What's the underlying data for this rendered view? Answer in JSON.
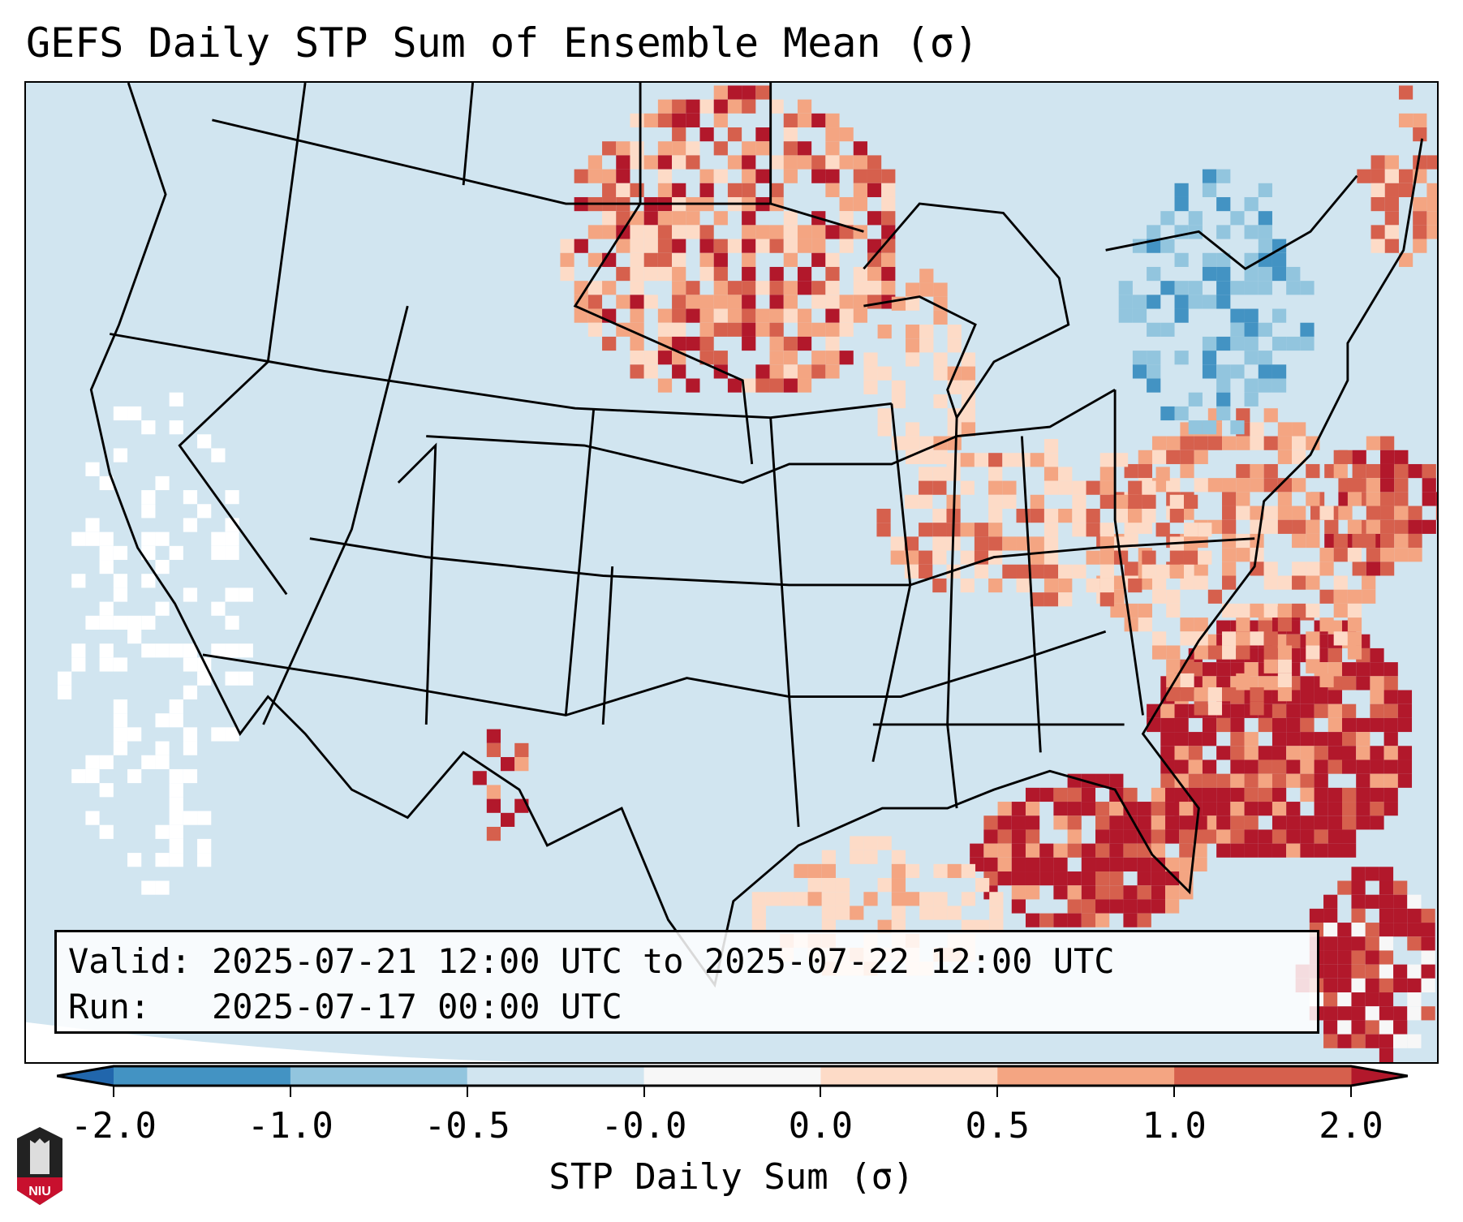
{
  "chart_data": {
    "type": "heatmap",
    "title": "GEFS Daily STP Sum of Ensemble Mean (σ)",
    "colorbar": {
      "label": "STP Daily Sum (σ)",
      "ticks": [
        "-2.0",
        "-1.0",
        "-0.5",
        "-0.0",
        "0.0",
        "0.5",
        "1.0",
        "2.0"
      ],
      "bounds": [
        -2.0,
        -1.0,
        -0.5,
        -0.0,
        0.0,
        0.5,
        1.0,
        2.0
      ],
      "colors": [
        "#4393c3",
        "#92c5de",
        "#d1e5f0",
        "#f7f7f7",
        "#fddbc7",
        "#f4a582",
        "#d6604d"
      ],
      "extend_min_color": "#2166ac",
      "extend_max_color": "#b2182b",
      "extend": "both"
    },
    "region": "Continental United States",
    "highlights": [
      {
        "area": "Southeast US coast / western Atlantic",
        "value_range": "> 2.0"
      },
      {
        "area": "Florida and northern Gulf of Mexico",
        "value_range": "> 2.0"
      },
      {
        "area": "Northern Plains / Upper Midwest",
        "value_range": "0.0 to 1.0"
      },
      {
        "area": "Ohio Valley / Mid-Atlantic",
        "value_range": "0.0 to 0.5"
      },
      {
        "area": "New York / New England",
        "value_range": "-1.0 to -0.5"
      }
    ]
  },
  "info": {
    "valid": "Valid: 2025-07-21 12:00 UTC to 2025-07-22 12:00 UTC",
    "run": "Run:   2025-07-17 00:00 UTC"
  },
  "logo": {
    "text": "NIU"
  }
}
